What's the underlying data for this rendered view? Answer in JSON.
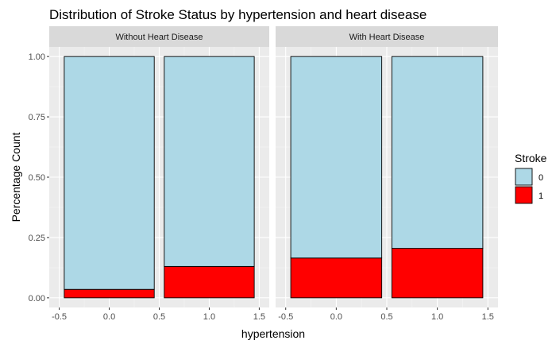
{
  "chart_data": {
    "type": "bar",
    "stacked": true,
    "title": "Distribution of Stroke Status by hypertension and heart disease",
    "xlabel": "hypertension",
    "ylabel": "Percentage Count",
    "xlim": [
      -0.5,
      1.5
    ],
    "ylim": [
      0,
      1
    ],
    "x_ticks": [
      -0.5,
      0.0,
      0.5,
      1.0,
      1.5
    ],
    "x_tick_labels": [
      "-0.5",
      "0.0",
      "0.5",
      "1.0",
      "1.5"
    ],
    "y_ticks": [
      0,
      0.25,
      0.5,
      0.75,
      1.0
    ],
    "y_tick_labels": [
      "0.00",
      "0.25",
      "0.50",
      "0.75",
      "1.00"
    ],
    "grid": true,
    "legend": {
      "title": "Stroke",
      "placement": "right",
      "entries": [
        {
          "label": "0",
          "color": "#add8e6"
        },
        {
          "label": "1",
          "color": "#ff0000"
        }
      ]
    },
    "panels": [
      {
        "label": "Without Heart Disease",
        "categories": [
          0,
          1
        ],
        "series": [
          {
            "name": "1",
            "values": [
              0.035,
              0.13
            ]
          },
          {
            "name": "0",
            "values": [
              0.965,
              0.87
            ]
          }
        ]
      },
      {
        "label": "With Heart Disease",
        "categories": [
          0,
          1
        ],
        "series": [
          {
            "name": "1",
            "values": [
              0.165,
              0.205
            ]
          },
          {
            "name": "0",
            "values": [
              0.835,
              0.795
            ]
          }
        ]
      }
    ]
  }
}
